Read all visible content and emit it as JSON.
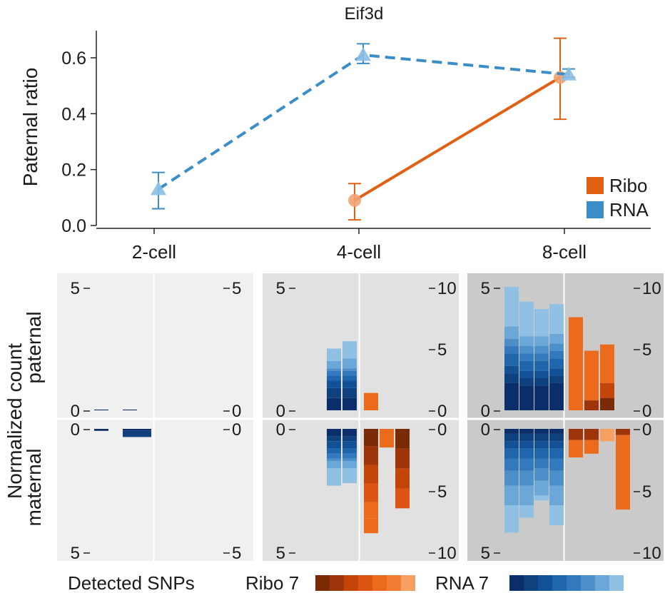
{
  "chart_data": [
    {
      "type": "line",
      "title": "Eif3d",
      "ylabel": "Paternal ratio",
      "categories": [
        "2-cell",
        "4-cell",
        "8-cell"
      ],
      "yticks": [
        "0.0",
        "0.2",
        "0.4",
        "0.6"
      ],
      "ylim": [
        0,
        0.7
      ],
      "series": [
        {
          "name": "Ribo",
          "color": "#e06014",
          "line_style": "solid",
          "marker": "circle",
          "values": [
            null,
            0.09,
            0.53
          ],
          "err_low": [
            null,
            0.02,
            0.38
          ],
          "err_high": [
            null,
            0.15,
            0.67
          ]
        },
        {
          "name": "RNA",
          "color": "#3b8dc8",
          "line_style": "dashed",
          "marker": "triangle",
          "values": [
            0.13,
            0.61,
            0.54
          ],
          "err_low": [
            0.06,
            0.58,
            0.53
          ],
          "err_high": [
            0.19,
            0.65,
            0.56
          ]
        }
      ],
      "legend_position": "bottom-right"
    },
    {
      "type": "bar",
      "ylabel": "Normalized count",
      "row_labels": [
        "paternal",
        "maternal"
      ],
      "panels": [
        {
          "stage": "2-cell",
          "ticks_left_top": [
            "5",
            "0"
          ],
          "ticks_right_top": [
            "5",
            "0"
          ],
          "ticks_left_bottom": [
            "0",
            "5"
          ],
          "ticks_right_bottom": [
            "0",
            "5"
          ],
          "left_max": 5,
          "right_max": 5,
          "rna_paternal": [
            [
              0.03
            ],
            [
              0.03
            ]
          ],
          "rna_maternal": [
            [
              0.08
            ],
            [
              0.08,
              0.25
            ],
            [
              0.08,
              0.25
            ]
          ],
          "ribo_paternal": [],
          "ribo_maternal": []
        },
        {
          "stage": "4-cell",
          "ticks_left_top": [
            "5",
            "0"
          ],
          "ticks_right_top": [
            "10",
            "5",
            "0"
          ],
          "ticks_left_bottom": [
            "0",
            "5"
          ],
          "ticks_right_bottom": [
            "0",
            "5",
            "10"
          ],
          "left_max": 5,
          "right_max": 10,
          "rna_paternal": [
            [
              0.5,
              0.4,
              0.3,
              0.2,
              0.2,
              0.1,
              0.3,
              0.5
            ],
            [
              0.5,
              0.4,
              0.3,
              0.2,
              0.2,
              0.1,
              0.4,
              0.7
            ]
          ],
          "rna_maternal": [
            [
              0.3,
              0.2,
              0.3,
              0.2,
              0.2,
              0.1,
              0.3,
              0.7
            ],
            [
              0.3,
              0.2,
              0.3,
              0.2,
              0.2,
              0.1,
              0.3,
              0.6
            ]
          ],
          "ribo_paternal": [
            [
              1.4
            ]
          ],
          "ribo_maternal": [
            [
              1.4,
              1.5,
              1.5,
              1.5,
              1.3,
              1.2
            ],
            [
              1.5
            ],
            [
              1.6,
              1.6,
              1.6,
              1.6
            ]
          ]
        },
        {
          "stage": "8-cell",
          "ticks_left_top": [
            "5",
            "0"
          ],
          "ticks_right_top": [
            "10",
            "5",
            "0"
          ],
          "ticks_left_bottom": [
            "0",
            "5"
          ],
          "ticks_right_bottom": [
            "0",
            "5",
            "10"
          ],
          "left_max": 5,
          "right_max": 10,
          "rna_paternal": [
            [
              1.1,
              0.4,
              0.3,
              0.5,
              0.3,
              0.3,
              0.5,
              1.6
            ],
            [
              1.0,
              0.3,
              0.3,
              0.4,
              0.3,
              0.3,
              0.4,
              1.4
            ],
            [
              1.0,
              0.3,
              0.3,
              0.4,
              0.3,
              0.3,
              0.4,
              1.1
            ],
            [
              1.1,
              0.3,
              0.3,
              0.4,
              0.3,
              0.3,
              0.4,
              1.2
            ]
          ],
          "rna_maternal": [
            [
              0.2,
              0.3,
              0.3,
              0.4,
              0.5,
              0.6,
              0.8,
              1.1
            ],
            [
              0.2,
              0.3,
              0.3,
              0.4,
              0.5,
              0.6,
              0.8,
              0.5
            ],
            [
              0.2,
              0.3,
              0.3,
              0.4,
              0.4,
              0.5,
              0.6,
              0.2
            ],
            [
              0.2,
              0.3,
              0.3,
              0.4,
              0.5,
              0.6,
              0.8,
              0.8
            ]
          ],
          "ribo_paternal": [
            [
              7.5
            ],
            [
              0.8,
              4.0
            ],
            [
              1.0,
              1.2,
              3.1
            ]
          ],
          "ribo_maternal": [
            [
              0.9,
              1.4
            ],
            [
              0.9,
              1.1
            ],
            [
              1.0
            ],
            [
              0.5,
              6.0
            ]
          ]
        }
      ],
      "legend": {
        "title": "Detected SNPs",
        "ribo_label": "Ribo 7",
        "rna_label": "RNA 7",
        "ribo_colors": [
          "#7a2a05",
          "#9e350a",
          "#c44509",
          "#dc5512",
          "#ec6a1c",
          "#f27d32",
          "#f6a062"
        ],
        "rna_colors": [
          "#0c2f6b",
          "#10417f",
          "#135196",
          "#1f66ad",
          "#3379bc",
          "#4d90c9",
          "#6ba7d7",
          "#90c1e4"
        ]
      }
    }
  ]
}
